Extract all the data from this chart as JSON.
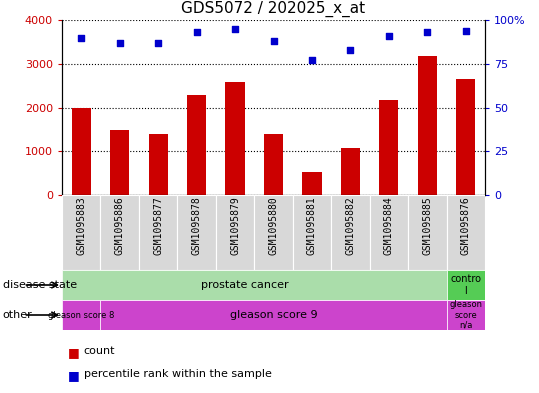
{
  "title": "GDS5072 / 202025_x_at",
  "samples": [
    "GSM1095883",
    "GSM1095886",
    "GSM1095877",
    "GSM1095878",
    "GSM1095879",
    "GSM1095880",
    "GSM1095881",
    "GSM1095882",
    "GSM1095884",
    "GSM1095885",
    "GSM1095876"
  ],
  "counts": [
    2000,
    1480,
    1390,
    2290,
    2580,
    1390,
    530,
    1080,
    2170,
    3170,
    2650
  ],
  "percentiles": [
    90,
    87,
    87,
    93,
    95,
    88,
    77,
    83,
    91,
    93,
    94
  ],
  "bar_color": "#cc0000",
  "dot_color": "#0000cc",
  "ylim_left": [
    0,
    4000
  ],
  "ylim_right": [
    0,
    100
  ],
  "yticks_left": [
    0,
    1000,
    2000,
    3000,
    4000
  ],
  "yticks_right": [
    0,
    25,
    50,
    75,
    100
  ],
  "green_light": "#aaddaa",
  "green_ctrl": "#55cc55",
  "magenta": "#cc44cc",
  "grid_color": "#000000",
  "bar_width": 0.5,
  "dot_size": 20,
  "percentile_scale": 40
}
